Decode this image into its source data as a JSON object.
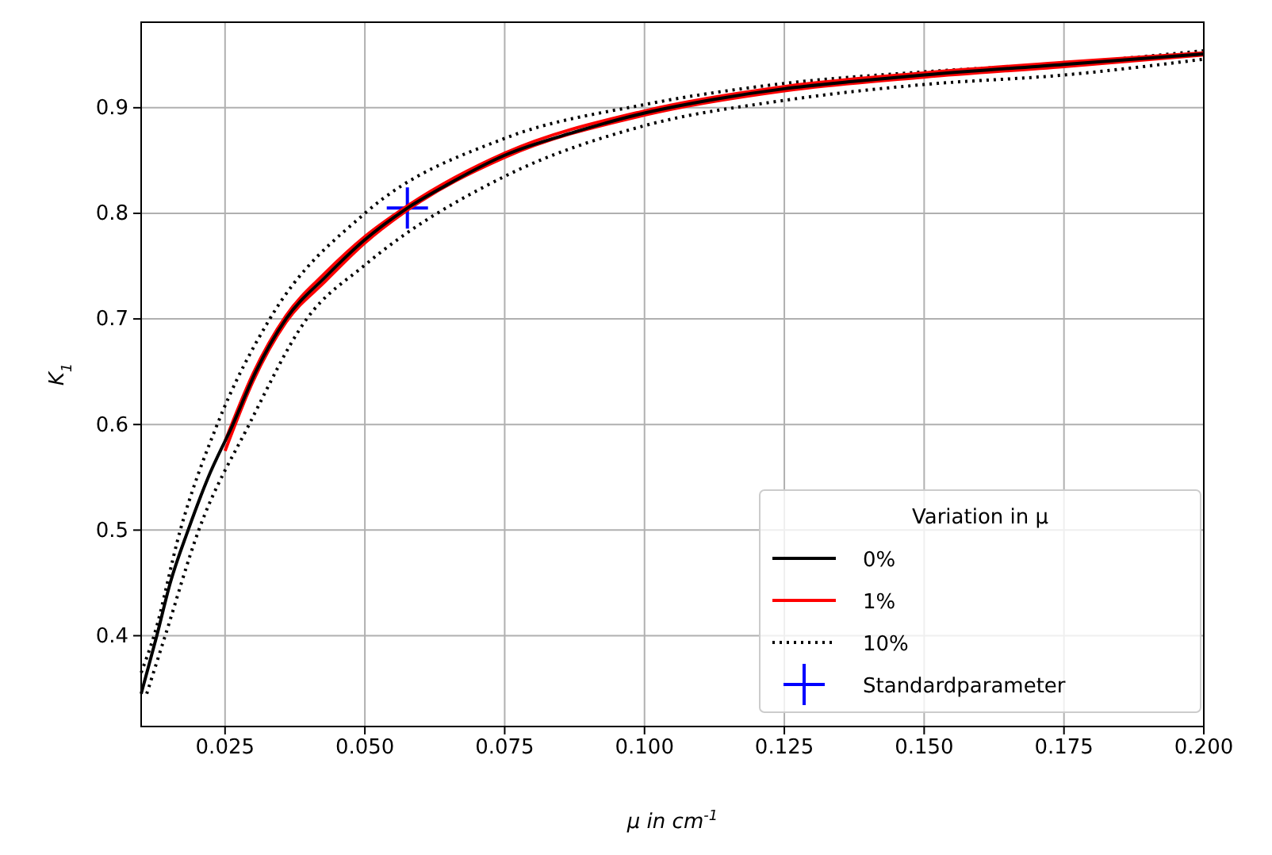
{
  "chart_data": {
    "type": "line",
    "xlabel": "μ in cm$^{-1}$",
    "ylabel": "K$_{1}$",
    "legend_title": "Variation in μ",
    "xlim": [
      0.01,
      0.2
    ],
    "ylim": [
      0.314,
      0.981
    ],
    "xticks": [
      {
        "value": 0.025,
        "label": "0.025"
      },
      {
        "value": 0.05,
        "label": "0.050"
      },
      {
        "value": 0.075,
        "label": "0.075"
      },
      {
        "value": 0.1,
        "label": "0.100"
      },
      {
        "value": 0.125,
        "label": "0.125"
      },
      {
        "value": 0.15,
        "label": "0.150"
      },
      {
        "value": 0.175,
        "label": "0.175"
      },
      {
        "value": 0.2,
        "label": "0.200"
      }
    ],
    "yticks": [
      0.4,
      0.5,
      0.6,
      0.7,
      0.8,
      0.9
    ],
    "grid": true,
    "legend": "bottom right",
    "series": [
      {
        "name": "0%",
        "line_style": "solid",
        "color": "#000000",
        "x": [
          0.01,
          0.0128,
          0.0152,
          0.0184,
          0.022,
          0.0264,
          0.0305,
          0.0359,
          0.043,
          0.05,
          0.0576,
          0.065,
          0.075,
          0.0875,
          0.1,
          0.1125,
          0.125,
          0.1375,
          0.15,
          0.175,
          0.2
        ],
        "values": [
          0.345,
          0.4,
          0.45,
          0.5,
          0.55,
          0.6,
          0.65,
          0.7,
          0.74,
          0.775,
          0.805,
          0.828,
          0.855,
          0.877,
          0.895,
          0.908,
          0.918,
          0.925,
          0.931,
          0.941,
          0.951
        ]
      },
      {
        "name": "1%",
        "line_style": "solid",
        "color": "#ff0000",
        "x": [
          0.025,
          0.03,
          0.0359,
          0.043,
          0.05,
          0.0576,
          0.075,
          0.1,
          0.125,
          0.15,
          0.175,
          0.2
        ],
        "values": [
          0.584,
          0.648,
          0.703,
          0.744,
          0.778,
          0.807,
          0.857,
          0.897,
          0.92,
          0.933,
          0.943,
          0.952
        ]
      },
      {
        "line_style": "solid",
        "color": "#ff0000",
        "x": [
          0.025,
          0.03,
          0.0359,
          0.043,
          0.05,
          0.0576,
          0.075,
          0.1,
          0.125,
          0.15,
          0.175,
          0.2
        ],
        "values": [
          0.575,
          0.641,
          0.697,
          0.736,
          0.772,
          0.803,
          0.853,
          0.893,
          0.916,
          0.929,
          0.939,
          0.95
        ]
      },
      {
        "name": "10%",
        "line_style": "dotted",
        "color": "#000000",
        "x": [
          0.01,
          0.0123,
          0.017,
          0.0236,
          0.033,
          0.05,
          0.075,
          0.1,
          0.125,
          0.15,
          0.175,
          0.2
        ],
        "values": [
          0.365,
          0.4,
          0.5,
          0.6,
          0.7,
          0.8,
          0.871,
          0.903,
          0.923,
          0.934,
          0.942,
          0.954
        ]
      },
      {
        "line_style": "dotted",
        "color": "#000000",
        "x": [
          0.011,
          0.0143,
          0.0203,
          0.0293,
          0.0396,
          0.05,
          0.075,
          0.1,
          0.125,
          0.15,
          0.175,
          0.2
        ],
        "values": [
          0.345,
          0.4,
          0.5,
          0.6,
          0.7,
          0.751,
          0.835,
          0.883,
          0.907,
          0.922,
          0.931,
          0.946
        ]
      },
      {
        "name": "Standardparameter",
        "type": "scatter",
        "marker": "cross",
        "color": "#0000ff",
        "x": [
          0.0576
        ],
        "values": [
          0.805
        ]
      }
    ]
  }
}
